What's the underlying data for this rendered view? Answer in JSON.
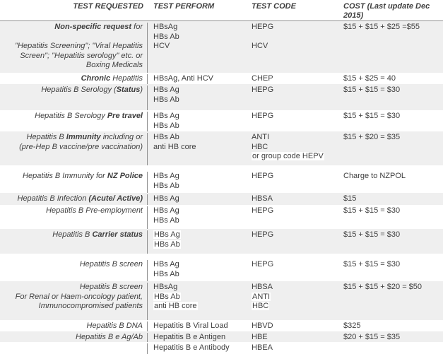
{
  "title": "Hepatitis test pricing table",
  "colors": {
    "row_shade": "#efefef",
    "border": "#909090",
    "text": "#3e3e3e",
    "highlight": "#ffffff"
  },
  "header": {
    "columns": [
      "TEST REQUESTED",
      "TEST PERFORM",
      "TEST CODE",
      "COST (Last update Dec 2015)"
    ]
  },
  "rows": [
    {
      "shaded": true,
      "requested": [
        [
          {
            "t": "Non-specific request",
            "b": true
          },
          {
            "t": " for"
          }
        ],
        [],
        [
          {
            "t": "\"Hepatitis Screening\"; \"Viral Hepatitis"
          }
        ],
        [
          {
            "t": "Screen\"; \"Hepatitis serology\" etc. or"
          }
        ],
        [
          {
            "t": "Boxing Medicals"
          }
        ]
      ],
      "performed": [
        {
          "t": "HBsAg"
        },
        {
          "t": "HBs Ab"
        },
        {
          "t": "HCV"
        }
      ],
      "code": [
        {
          "t": "HEPG"
        },
        {
          "t": ""
        },
        {
          "t": "HCV"
        }
      ],
      "cost": [
        {
          "t": "$15 + $15 + $25 =$55"
        }
      ]
    },
    {
      "shaded": false,
      "requested": [
        [
          {
            "t": "Chronic",
            "b": true
          },
          {
            "t": " Hepatitis"
          }
        ]
      ],
      "performed": [
        {
          "t": "HBsAg, Anti HCV"
        }
      ],
      "code": [
        {
          "t": "CHEP"
        }
      ],
      "cost": [
        {
          "t": "$15 + $25 = 40"
        }
      ]
    },
    {
      "shaded": true,
      "requested": [
        [
          {
            "t": "Hepatitis B Serology ("
          },
          {
            "t": "Status",
            "b": true
          },
          {
            "t": ")"
          }
        ]
      ],
      "performed": [
        {
          "t": "HBs Ag"
        },
        {
          "t": "HBs Ab"
        }
      ],
      "code": [
        {
          "t": "HEPG"
        }
      ],
      "cost": [
        {
          "t": "$15 + $15 = $30"
        }
      ]
    },
    {
      "shaded": false,
      "requested": [
        [
          {
            "t": "Hepatitis B Serology "
          },
          {
            "t": "Pre travel",
            "b": true
          }
        ]
      ],
      "performed": [
        {
          "t": "HBs Ag"
        },
        {
          "t": "HBs Ab"
        }
      ],
      "code": [
        {
          "t": "HEPG"
        }
      ],
      "cost": [
        {
          "t": "$15 + $15 = $30"
        }
      ]
    },
    {
      "shaded": true,
      "requested": [
        [
          {
            "t": "Hepatitis B "
          },
          {
            "t": "Immunity",
            "b": true
          },
          {
            "t": " including or"
          }
        ],
        [
          {
            "t": "(pre-Hep B vaccine/pre vaccination)"
          }
        ]
      ],
      "performed": [
        {
          "t": "HBs Ab"
        },
        {
          "t": "anti HB core"
        }
      ],
      "code": [
        {
          "t": "ANTI"
        },
        {
          "t": "HBC"
        },
        {
          "t": "or group code HEPV",
          "hl": true
        }
      ],
      "cost": [
        {
          "t": "$15 + $20 = $35"
        }
      ]
    },
    {
      "shaded": false,
      "requested": [
        [
          {
            "t": "Hepatitis B Immunity for "
          },
          {
            "t": "NZ Police",
            "b": true
          }
        ]
      ],
      "performed": [
        {
          "t": "HBs Ag"
        },
        {
          "t": "HBs Ab"
        }
      ],
      "code": [
        {
          "t": "HEPG"
        }
      ],
      "cost": [
        {
          "t": "Charge to NZPOL"
        }
      ]
    },
    {
      "shaded": true,
      "requested": [
        [
          {
            "t": "Hepatitis B Infection "
          },
          {
            "t": "(Acute/ Active)",
            "b": true
          }
        ]
      ],
      "performed": [
        {
          "t": "HBs Ag"
        }
      ],
      "code": [
        {
          "t": "HBSA"
        }
      ],
      "cost": [
        {
          "t": "$15"
        }
      ]
    },
    {
      "shaded": false,
      "requested": [
        [
          {
            "t": "Hepatitis B Pre-employment"
          }
        ]
      ],
      "performed": [
        {
          "t": "HBs Ag"
        },
        {
          "t": "HBs Ab"
        }
      ],
      "code": [
        {
          "t": "HEPG"
        }
      ],
      "cost": [
        {
          "t": "$15 + $15 = $30"
        }
      ]
    },
    {
      "shaded": true,
      "requested": [
        [
          {
            "t": "Hepatitis B "
          },
          {
            "t": "Carrier status",
            "b": true
          }
        ]
      ],
      "performed": [
        {
          "t": "HBs Ag",
          "hl": true
        },
        {
          "t": "HBs Ab",
          "hl": true
        }
      ],
      "code": [
        {
          "t": "HEPG"
        }
      ],
      "cost": [
        {
          "t": "$15 + $15 = $30"
        }
      ]
    },
    {
      "shaded": false,
      "requested": [
        [
          {
            "t": "Hepatitis B screen"
          }
        ]
      ],
      "performed": [
        {
          "t": "HBs Ag"
        },
        {
          "t": "HBs Ab"
        }
      ],
      "code": [
        {
          "t": "HEPG"
        }
      ],
      "cost": [
        {
          "t": "$15 + $15 = $30"
        }
      ]
    },
    {
      "shaded": true,
      "requested": [
        [
          {
            "t": "Hepatitis B screen"
          }
        ],
        [
          {
            "t": "For Renal or Haem-oncology patient,"
          }
        ],
        [
          {
            "t": "Immunocompromised patients"
          }
        ]
      ],
      "performed": [
        {
          "t": "HBsAg"
        },
        {
          "t": "HBs Ab",
          "hl": true
        },
        {
          "t": "anti HB core",
          "hl": true
        }
      ],
      "code": [
        {
          "t": "HBSA"
        },
        {
          "t": "ANTI",
          "hl": true
        },
        {
          "t": "HBC",
          "hl": true
        }
      ],
      "cost": [
        {
          "t": "$15 + $15 + $20 = $50"
        }
      ]
    },
    {
      "shaded": false,
      "requested": [
        [
          {
            "t": "Hepatitis B DNA"
          }
        ]
      ],
      "performed": [
        {
          "t": "Hepatitis B Viral Load"
        }
      ],
      "code": [
        {
          "t": "HBVD"
        }
      ],
      "cost": [
        {
          "t": "$325"
        }
      ]
    },
    {
      "shaded": true,
      "requested": [
        [
          {
            "t": "Hepatitis B e Ag/Ab"
          }
        ]
      ],
      "performed": [
        {
          "t": "Hepatitis B e Antigen"
        }
      ],
      "code": [
        {
          "t": "HBE"
        }
      ],
      "cost": [
        {
          "t": "$20 + $15 = $35"
        }
      ]
    },
    {
      "shaded": false,
      "requested": [],
      "performed": [
        {
          "t": "Hepatitis B e Antibody"
        }
      ],
      "code": [
        {
          "t": "HBEA"
        }
      ],
      "cost": []
    }
  ]
}
